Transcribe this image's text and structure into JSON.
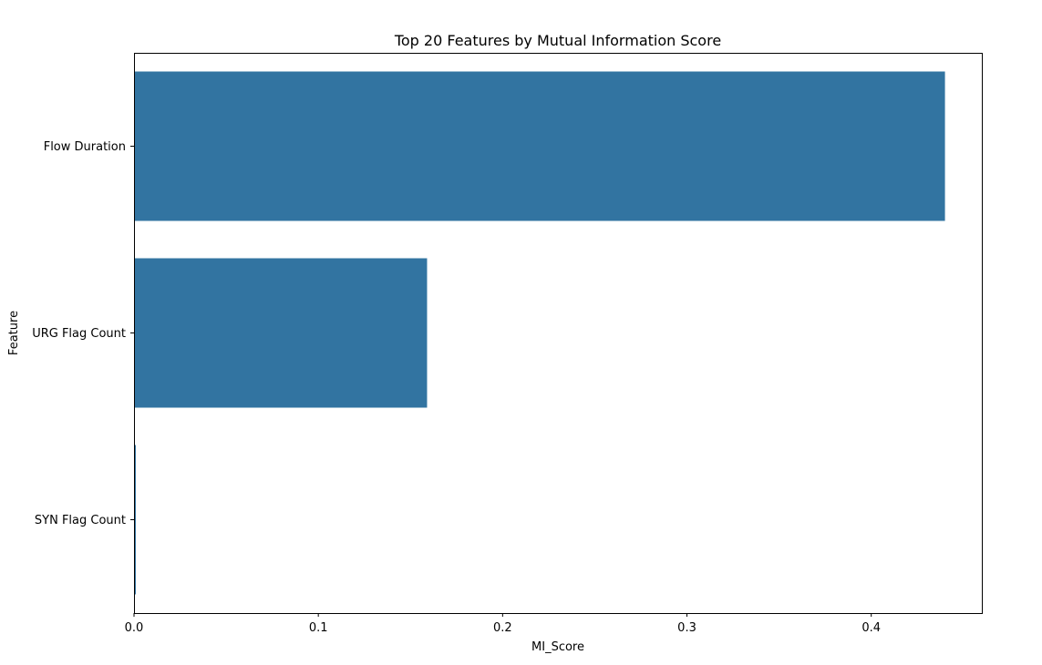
{
  "chart_data": {
    "type": "bar",
    "orientation": "horizontal",
    "title": "Top 20 Features by Mutual Information Score",
    "xlabel": "MI_Score",
    "ylabel": "Feature",
    "categories": [
      "Flow Duration",
      "URG Flag Count",
      "SYN Flag Count"
    ],
    "values": [
      0.44,
      0.159,
      0.001
    ],
    "xlim": [
      0,
      0.46
    ],
    "xticks": [
      0,
      0.1,
      0.2,
      0.3,
      0.4
    ],
    "xtick_labels": [
      "0.0",
      "0.1",
      "0.2",
      "0.3",
      "0.4"
    ],
    "bar_color": "#3274a1",
    "grid": false,
    "legend": null
  }
}
